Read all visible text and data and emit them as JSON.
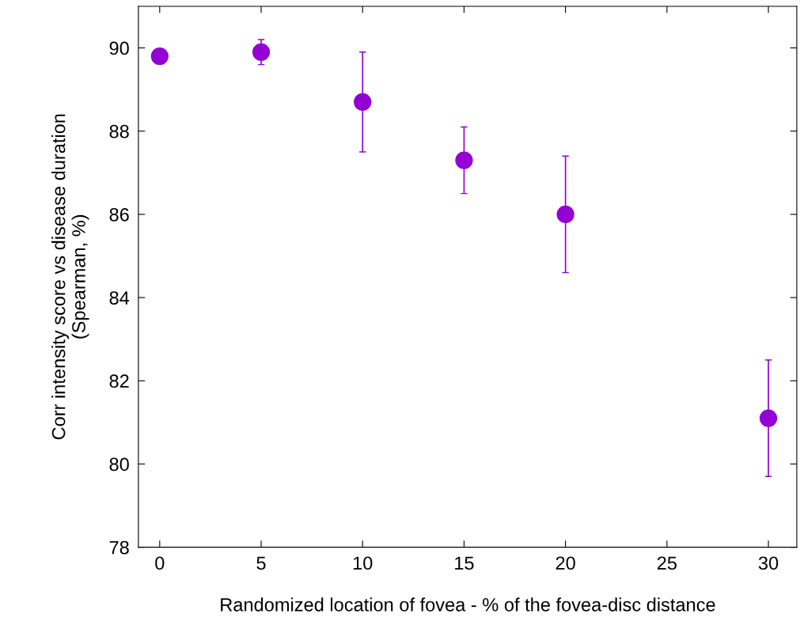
{
  "chart_data": {
    "type": "scatter",
    "xlabel": "Randomized location of fovea - % of the fovea-disc distance",
    "ylabel": "Corr intensity score vs disease duration\n(Spearman, %)",
    "x": [
      0,
      5,
      10,
      15,
      20,
      30
    ],
    "series": [
      {
        "color": "#9400d3",
        "values": [
          89.8,
          89.9,
          88.7,
          87.3,
          86.0,
          81.1
        ],
        "errors": [
          null,
          [
            89.6,
            90.2
          ],
          [
            87.5,
            89.9
          ],
          [
            86.5,
            88.1
          ],
          [
            84.6,
            87.4
          ],
          [
            79.7,
            82.5
          ]
        ]
      }
    ],
    "xlim": [
      -1.05,
      31.4
    ],
    "ylim": [
      78,
      91
    ],
    "xticks": [
      0,
      5,
      10,
      15,
      20,
      25,
      30
    ],
    "yticks": [
      78,
      80,
      82,
      84,
      86,
      88,
      90
    ],
    "marker": "circle",
    "grid": false
  }
}
